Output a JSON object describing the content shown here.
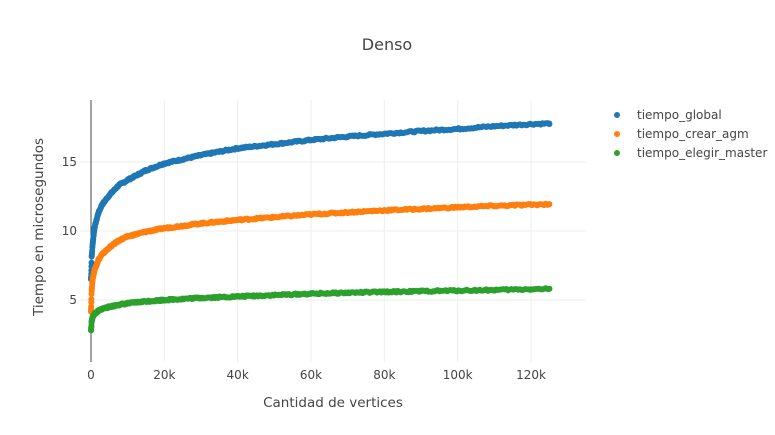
{
  "chart_data": {
    "type": "scatter",
    "title": "Denso",
    "xlabel": "Cantidad de vertices",
    "ylabel": "Tiempo en microsegundos",
    "xlim": [
      -3000,
      135000
    ],
    "ylim": [
      0.5,
      19.5
    ],
    "x_ticks": [
      0,
      20000,
      40000,
      60000,
      80000,
      100000,
      120000
    ],
    "x_tick_labels": [
      "0",
      "20k",
      "40k",
      "60k",
      "80k",
      "100k",
      "120k"
    ],
    "y_ticks": [
      5,
      10,
      15
    ],
    "y_tick_labels": [
      "5",
      "10",
      "15"
    ],
    "grid": true,
    "legend_position": "top-right",
    "series": [
      {
        "name": "tiempo_global",
        "color": "#1f77b4",
        "x": [
          10,
          200,
          500,
          1000,
          2000,
          3000,
          5000,
          7500,
          10000,
          15000,
          20000,
          30000,
          40000,
          50000,
          60000,
          70000,
          80000,
          90000,
          100000,
          110000,
          120000,
          125000
        ],
        "y": [
          6.5,
          8.2,
          9.2,
          10.3,
          11.3,
          11.9,
          12.6,
          13.3,
          13.7,
          14.4,
          14.9,
          15.5,
          16.0,
          16.3,
          16.6,
          16.85,
          17.05,
          17.25,
          17.4,
          17.6,
          17.75,
          17.8
        ]
      },
      {
        "name": "tiempo_crear_agm",
        "color": "#ff7f0e",
        "x": [
          10,
          200,
          500,
          1000,
          2000,
          3000,
          5000,
          7500,
          10000,
          15000,
          20000,
          30000,
          40000,
          50000,
          60000,
          70000,
          80000,
          90000,
          100000,
          110000,
          120000,
          125000
        ],
        "y": [
          4.2,
          5.8,
          6.6,
          7.2,
          7.9,
          8.3,
          8.8,
          9.3,
          9.6,
          9.95,
          10.2,
          10.55,
          10.8,
          11.0,
          11.2,
          11.35,
          11.5,
          11.6,
          11.72,
          11.82,
          11.9,
          11.95
        ]
      },
      {
        "name": "tiempo_elegir_master",
        "color": "#2ca02c",
        "x": [
          10,
          200,
          500,
          1000,
          2000,
          3000,
          5000,
          7500,
          10000,
          15000,
          20000,
          30000,
          40000,
          50000,
          60000,
          70000,
          80000,
          90000,
          100000,
          110000,
          120000,
          125000
        ],
        "y": [
          2.8,
          3.5,
          3.8,
          4.0,
          4.2,
          4.35,
          4.5,
          4.65,
          4.75,
          4.9,
          5.0,
          5.15,
          5.25,
          5.35,
          5.45,
          5.52,
          5.58,
          5.63,
          5.68,
          5.72,
          5.78,
          5.8
        ]
      }
    ]
  }
}
